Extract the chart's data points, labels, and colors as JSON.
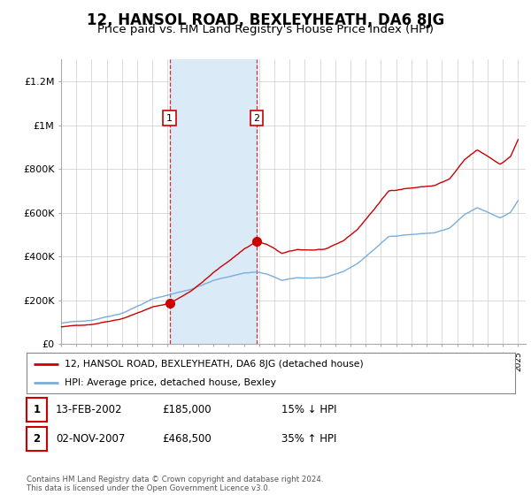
{
  "title": "12, HANSOL ROAD, BEXLEYHEATH, DA6 8JG",
  "subtitle": "Price paid vs. HM Land Registry's House Price Index (HPI)",
  "title_fontsize": 12,
  "subtitle_fontsize": 9.5,
  "ylabel_ticks": [
    "£0",
    "£200K",
    "£400K",
    "£600K",
    "£800K",
    "£1M",
    "£1.2M"
  ],
  "ytick_vals": [
    0,
    200000,
    400000,
    600000,
    800000,
    1000000,
    1200000
  ],
  "ylim": [
    0,
    1300000
  ],
  "xlim_start": 1995.0,
  "xlim_end": 2025.5,
  "sale1_year": 2002.12,
  "sale1_price": 185000,
  "sale2_year": 2007.84,
  "sale2_price": 468500,
  "shade_color": "#daeaf7",
  "red_color": "#cc0000",
  "blue_color": "#7aaddb",
  "legend_red_label": "12, HANSOL ROAD, BEXLEYHEATH, DA6 8JG (detached house)",
  "legend_blue_label": "HPI: Average price, detached house, Bexley",
  "box_color": "#cc0000",
  "footnote": "Contains HM Land Registry data © Crown copyright and database right 2024.\nThis data is licensed under the Open Government Licence v3.0.",
  "table_row1": [
    "1",
    "13-FEB-2002",
    "£185,000",
    "15% ↓ HPI"
  ],
  "table_row2": [
    "2",
    "02-NOV-2007",
    "£468,500",
    "35% ↑ HPI"
  ],
  "background_color": "#ffffff",
  "plot_bg_color": "#ffffff",
  "grid_color": "#cccccc"
}
